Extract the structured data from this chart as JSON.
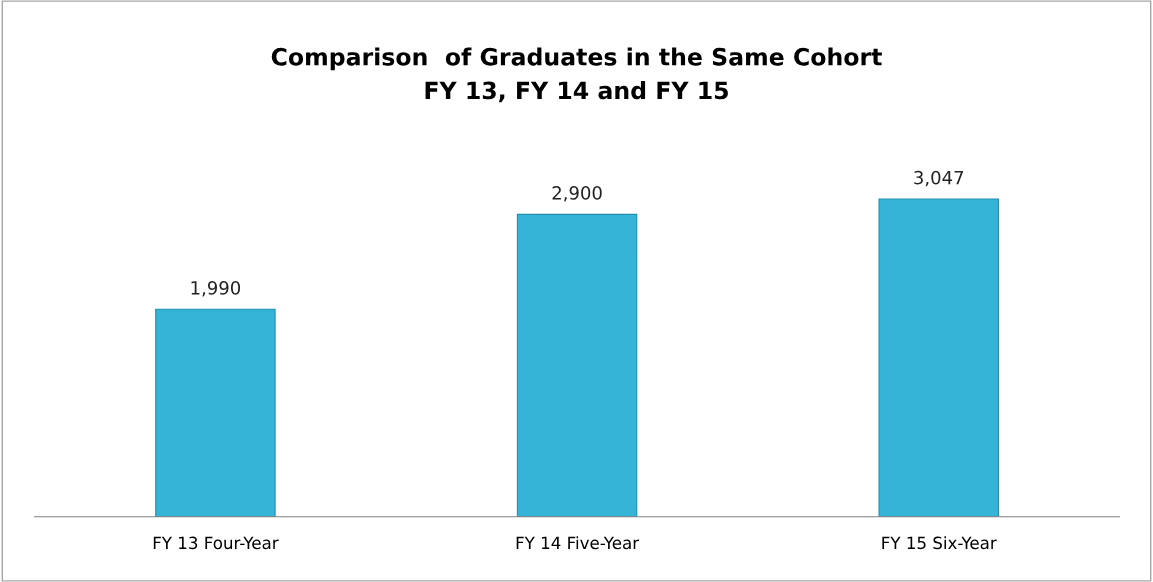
{
  "chart_data": {
    "type": "bar",
    "title": "Comparison  of Graduates in the Same Cohort\nFY 13, FY 14 and FY 15",
    "categories": [
      "FY 13 Four-Year",
      "FY 14 Five-Year",
      "FY 15 Six-Year"
    ],
    "values": [
      1990,
      2900,
      3047
    ],
    "value_labels": [
      "1,990",
      "2,900",
      "3,047"
    ],
    "color": "#35b4d8",
    "grid": false,
    "legend": false
  }
}
